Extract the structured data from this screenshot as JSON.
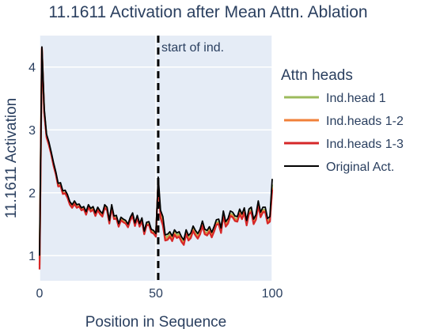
{
  "chart_data": {
    "type": "line",
    "title": "11.1611 Activation after Mean Attn. Ablation",
    "xlabel": "Position in Sequence",
    "ylabel": "11.1611 Activation",
    "xlim": [
      0,
      100
    ],
    "ylim": [
      0.6,
      4.5
    ],
    "xticks": [
      0,
      50,
      100
    ],
    "yticks": [
      1,
      2,
      3,
      4
    ],
    "grid": true,
    "plot_background": "#e5ecf6",
    "legend": {
      "title": "Attn heads",
      "position": "right"
    },
    "annotation": {
      "text": "start of ind.",
      "x": 51,
      "line_style": "dashed",
      "color": "#000000"
    },
    "series": [
      {
        "name": "Ind.head 1",
        "color": "#9cbb5c",
        "values": [
          0.95,
          4.28,
          3.3,
          2.9,
          2.78,
          2.62,
          2.45,
          2.3,
          2.12,
          2.13,
          2.0,
          2.0,
          1.94,
          1.83,
          1.77,
          1.84,
          1.78,
          1.79,
          1.73,
          1.75,
          1.67,
          1.78,
          1.72,
          1.75,
          1.65,
          1.74,
          1.68,
          1.64,
          1.78,
          1.74,
          1.53,
          1.78,
          1.6,
          1.61,
          1.48,
          1.58,
          1.55,
          1.53,
          1.47,
          1.58,
          1.65,
          1.49,
          1.61,
          1.48,
          1.57,
          1.36,
          1.5,
          1.51,
          1.39,
          1.37,
          1.32,
          2.13,
          1.67,
          1.56,
          1.3,
          1.3,
          1.35,
          1.27,
          1.38,
          1.32,
          1.35,
          1.26,
          1.21,
          1.38,
          1.28,
          1.32,
          1.43,
          1.36,
          1.31,
          1.38,
          1.51,
          1.38,
          1.36,
          1.42,
          1.33,
          1.42,
          1.53,
          1.54,
          1.4,
          1.67,
          1.5,
          1.55,
          1.67,
          1.65,
          1.59,
          1.58,
          1.7,
          1.62,
          1.72,
          1.52,
          1.7,
          1.73,
          1.54,
          1.61,
          1.83,
          1.65,
          1.73,
          1.73,
          1.55,
          1.58,
          2.13
        ]
      },
      {
        "name": "Ind.heads 1-2",
        "color": "#f0803a",
        "values": [
          0.85,
          4.3,
          3.28,
          2.89,
          2.77,
          2.62,
          2.44,
          2.3,
          2.11,
          2.12,
          1.99,
          2.0,
          1.93,
          1.82,
          1.77,
          1.83,
          1.77,
          1.79,
          1.73,
          1.75,
          1.66,
          1.78,
          1.71,
          1.74,
          1.64,
          1.73,
          1.67,
          1.63,
          1.77,
          1.73,
          1.52,
          1.77,
          1.59,
          1.6,
          1.47,
          1.57,
          1.54,
          1.52,
          1.46,
          1.57,
          1.64,
          1.48,
          1.6,
          1.47,
          1.56,
          1.35,
          1.49,
          1.5,
          1.38,
          1.36,
          1.31,
          2.16,
          1.63,
          1.52,
          1.27,
          1.27,
          1.32,
          1.25,
          1.35,
          1.3,
          1.32,
          1.24,
          1.19,
          1.36,
          1.26,
          1.3,
          1.41,
          1.34,
          1.29,
          1.36,
          1.49,
          1.36,
          1.34,
          1.4,
          1.31,
          1.4,
          1.51,
          1.52,
          1.38,
          1.65,
          1.48,
          1.53,
          1.65,
          1.63,
          1.57,
          1.56,
          1.68,
          1.6,
          1.7,
          1.5,
          1.68,
          1.71,
          1.52,
          1.59,
          1.81,
          1.63,
          1.71,
          1.71,
          1.53,
          1.56,
          2.08
        ]
      },
      {
        "name": "Ind.heads 1-3",
        "color": "#d62728",
        "values": [
          0.78,
          4.31,
          3.27,
          2.88,
          2.76,
          2.61,
          2.43,
          2.29,
          2.1,
          2.11,
          1.98,
          1.99,
          1.92,
          1.81,
          1.76,
          1.82,
          1.76,
          1.78,
          1.72,
          1.74,
          1.65,
          1.77,
          1.7,
          1.73,
          1.63,
          1.72,
          1.66,
          1.62,
          1.76,
          1.72,
          1.51,
          1.76,
          1.58,
          1.59,
          1.46,
          1.56,
          1.53,
          1.51,
          1.45,
          1.56,
          1.63,
          1.47,
          1.59,
          1.46,
          1.55,
          1.34,
          1.48,
          1.49,
          1.37,
          1.35,
          1.3,
          2.17,
          1.6,
          1.48,
          1.24,
          1.25,
          1.3,
          1.23,
          1.33,
          1.28,
          1.3,
          1.22,
          1.17,
          1.34,
          1.24,
          1.28,
          1.39,
          1.32,
          1.27,
          1.34,
          1.47,
          1.34,
          1.32,
          1.38,
          1.29,
          1.38,
          1.49,
          1.5,
          1.36,
          1.63,
          1.46,
          1.51,
          1.63,
          1.61,
          1.55,
          1.54,
          1.66,
          1.58,
          1.68,
          1.48,
          1.66,
          1.69,
          1.5,
          1.57,
          1.79,
          1.61,
          1.69,
          1.69,
          1.51,
          1.54,
          2.05
        ]
      },
      {
        "name": "Original Act.",
        "color": "#000000",
        "values": [
          1.0,
          4.32,
          3.34,
          2.93,
          2.81,
          2.65,
          2.48,
          2.33,
          2.15,
          2.16,
          2.03,
          2.04,
          1.97,
          1.86,
          1.81,
          1.87,
          1.81,
          1.82,
          1.76,
          1.78,
          1.7,
          1.81,
          1.75,
          1.78,
          1.68,
          1.77,
          1.71,
          1.67,
          1.81,
          1.77,
          1.56,
          1.81,
          1.63,
          1.64,
          1.51,
          1.61,
          1.58,
          1.56,
          1.5,
          1.61,
          1.68,
          1.52,
          1.64,
          1.51,
          1.6,
          1.39,
          1.53,
          1.54,
          1.42,
          1.4,
          1.35,
          2.25,
          1.72,
          1.62,
          1.33,
          1.34,
          1.38,
          1.31,
          1.41,
          1.36,
          1.38,
          1.3,
          1.25,
          1.41,
          1.32,
          1.36,
          1.47,
          1.4,
          1.35,
          1.42,
          1.55,
          1.42,
          1.4,
          1.46,
          1.37,
          1.46,
          1.57,
          1.58,
          1.44,
          1.71,
          1.54,
          1.59,
          1.71,
          1.69,
          1.63,
          1.62,
          1.74,
          1.66,
          1.76,
          1.56,
          1.74,
          1.77,
          1.58,
          1.65,
          1.87,
          1.69,
          1.77,
          1.77,
          1.59,
          1.62,
          2.22
        ]
      }
    ]
  }
}
